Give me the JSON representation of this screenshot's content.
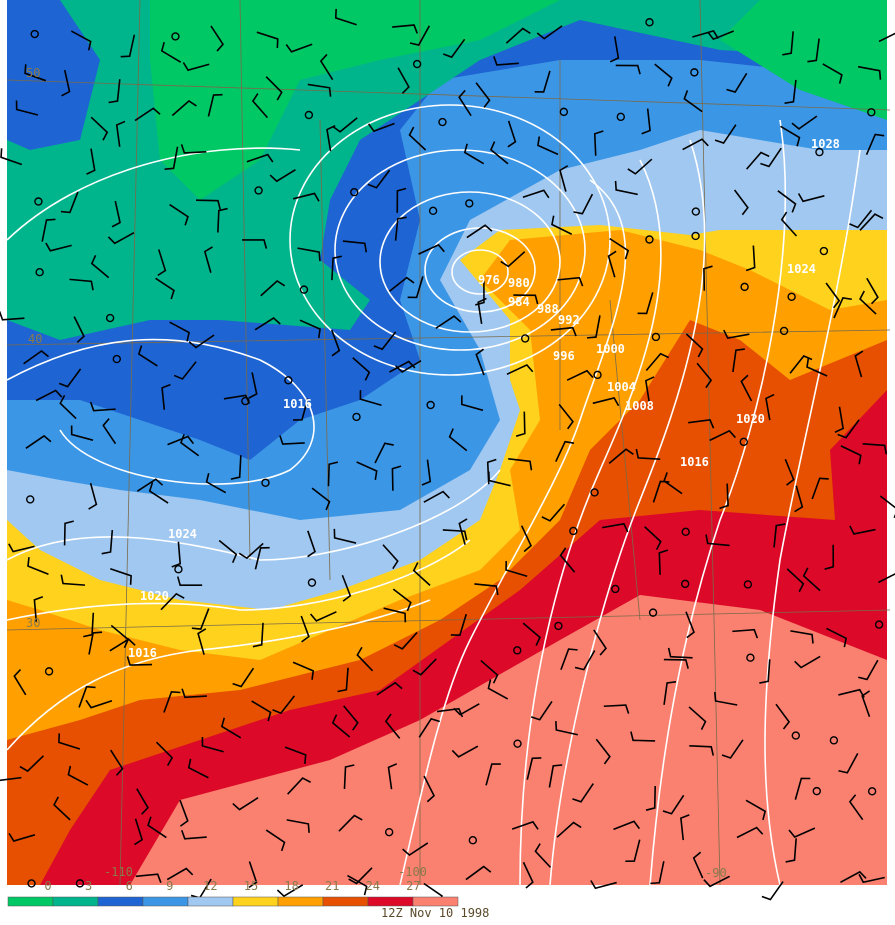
{
  "map_labels": {
    "isobar_labels": [
      1028,
      1024,
      1016,
      1024,
      1020,
      1016,
      976,
      980,
      984,
      988,
      992,
      996,
      1000,
      1004,
      1008,
      1016,
      1020
    ],
    "latitude_labels": [
      50,
      40,
      30
    ],
    "longitude_labels": [
      -110,
      -100,
      -90
    ]
  },
  "colorbar": {
    "labels": [
      0,
      3,
      6,
      9,
      12,
      15,
      18,
      21,
      24,
      27
    ]
  },
  "timestamp": "12Z Nov 10 1998"
}
